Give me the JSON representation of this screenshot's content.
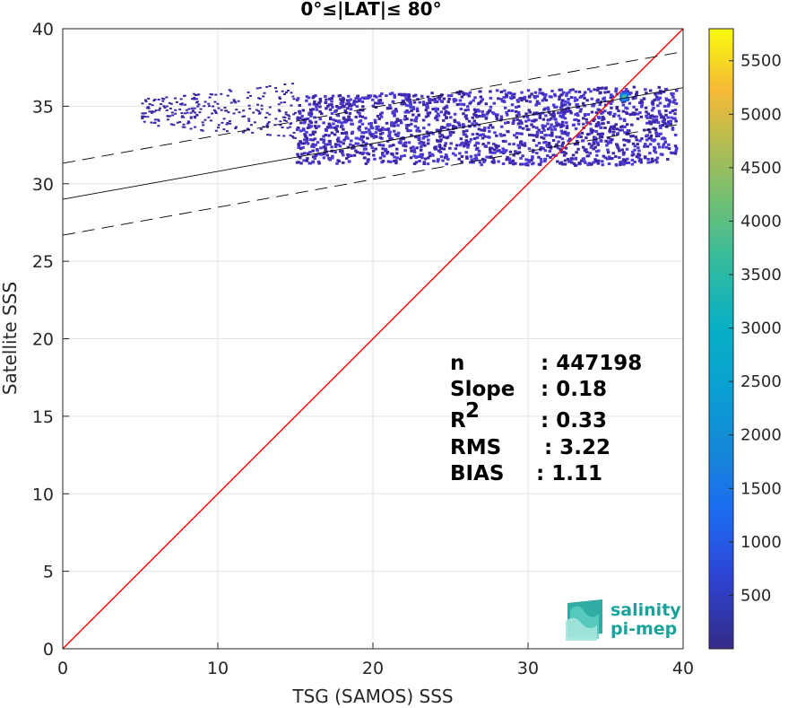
{
  "chart_data": {
    "type": "heatmap",
    "title": "0°≤|LAT|≤ 80°",
    "xlabel": "TSG (SAMOS) SSS",
    "ylabel": "Satellite SSS",
    "xlim": [
      0,
      40
    ],
    "ylim": [
      0,
      40
    ],
    "xticks": [
      "0",
      "10",
      "20",
      "30",
      "40"
    ],
    "yticks": [
      "0",
      "5",
      "10",
      "15",
      "20",
      "25",
      "30",
      "35",
      "40"
    ],
    "grid": true,
    "reference_line": {
      "color": "#ff0000",
      "from": [
        0,
        0
      ],
      "to": [
        40,
        40
      ]
    },
    "regression": {
      "slope": 0.18,
      "intercept": 29.0,
      "band_offset": 2.32,
      "color": "#000000"
    },
    "density_cloud": {
      "core": {
        "x": [
          15,
          39.5
        ],
        "y": [
          31.2,
          36.4
        ]
      },
      "tail": {
        "x": [
          5,
          15
        ],
        "y": [
          33.6,
          35.8
        ]
      },
      "hotspot": {
        "x": 36.2,
        "y": 35.6
      },
      "color_low": "#3e26a8",
      "color_mid": "#4a3bd6"
    },
    "stats": [
      {
        "label": "n",
        "value": ": 447198"
      },
      {
        "label": "Slope",
        "value": ": 0.18"
      },
      {
        "label": "R",
        "sup": "2",
        "value": ": 0.33"
      },
      {
        "label": "RMS",
        "value": ": 3.22"
      },
      {
        "label": "BIAS",
        "value": ": 1.11"
      }
    ],
    "colorbar": {
      "range": [
        0,
        5800
      ],
      "ticks": [
        "500",
        "1000",
        "1500",
        "2000",
        "2500",
        "3000",
        "3500",
        "4000",
        "4500",
        "5000",
        "5500"
      ],
      "colormap": "parula"
    }
  },
  "logo": {
    "line1": "salinity",
    "line2": "pi-mep"
  }
}
